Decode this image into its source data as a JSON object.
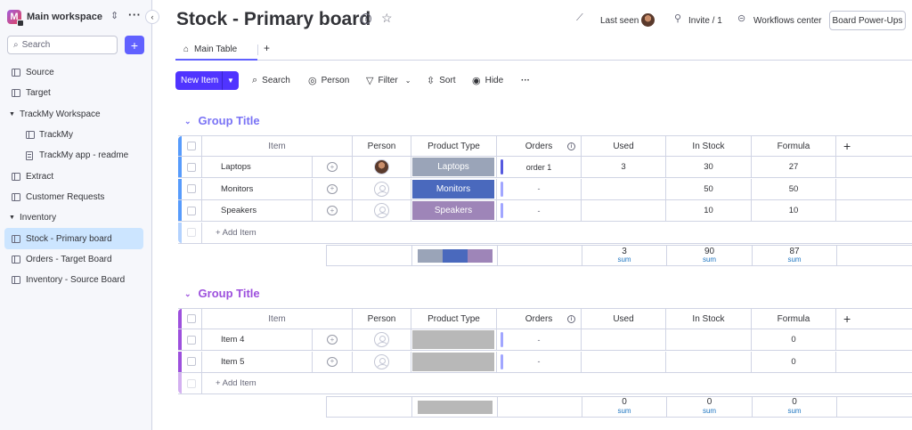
{
  "sidebar": {
    "workspace_name": "Main workspace",
    "workspace_initial": "M",
    "search_placeholder": "Search",
    "add_label": "+",
    "items": [
      {
        "label": "Source",
        "icon": "board-icon",
        "indent": 0
      },
      {
        "label": "Target",
        "icon": "board-icon",
        "indent": 0
      },
      {
        "label": "TrackMy Workspace",
        "icon": "caret-down-icon",
        "indent": 0,
        "folder": true
      },
      {
        "label": "TrackMy",
        "icon": "board-icon",
        "indent": 1
      },
      {
        "label": "TrackMy app - readme",
        "icon": "doc-icon",
        "indent": 1
      },
      {
        "label": "Extract",
        "icon": "board-icon",
        "indent": 0
      },
      {
        "label": "Customer Requests",
        "icon": "board-icon",
        "indent": 0
      },
      {
        "label": "Inventory",
        "icon": "caret-down-icon",
        "indent": 0,
        "folder": true
      },
      {
        "label": "Stock - Primary board",
        "icon": "board-icon",
        "indent": 0,
        "active": true
      },
      {
        "label": "Orders - Target Board",
        "icon": "board-icon",
        "indent": 0
      },
      {
        "label": "Inventory - Source Board",
        "icon": "board-icon",
        "indent": 0
      }
    ]
  },
  "header": {
    "title": "Stock - Primary board",
    "last_seen": "Last seen",
    "invite": "Invite / 1",
    "workflows": "Workflows center",
    "power_ups": "Board Power-Ups"
  },
  "tabs": {
    "main": "Main Table",
    "add": "+"
  },
  "toolbar": {
    "new_item": "New Item",
    "search": "Search",
    "person": "Person",
    "filter": "Filter",
    "sort": "Sort",
    "hide": "Hide",
    "more": "···"
  },
  "columns": {
    "item": "Item",
    "person": "Person",
    "product_type": "Product Type",
    "orders": "Orders",
    "used": "Used",
    "in_stock": "In Stock",
    "formula": "Formula",
    "add": "+"
  },
  "colors": {
    "group1": "#579bfc",
    "group1_title": "#7a73f5",
    "group2": "#9d50dd",
    "laptops": "#9aa4b8",
    "monitors": "#4a69bd",
    "speakers": "#9e85b8",
    "empty_status": "#b8b8b8",
    "primary": "#5034ff"
  },
  "groups": [
    {
      "title": "Group Title",
      "rows": [
        {
          "item": "Laptops",
          "person": "photo",
          "product_type": "Laptops",
          "status_color": "#9aa4b8",
          "orders": "order 1",
          "orders_bar": "dark",
          "used": "3",
          "in_stock": "30",
          "formula": "27"
        },
        {
          "item": "Monitors",
          "person": "empty",
          "product_type": "Monitors",
          "status_color": "#4a69bd",
          "orders": "-",
          "orders_bar": "light",
          "used": "",
          "in_stock": "50",
          "formula": "50"
        },
        {
          "item": "Speakers",
          "person": "empty",
          "product_type": "Speakers",
          "status_color": "#9e85b8",
          "orders": "-",
          "orders_bar": "light",
          "used": "",
          "in_stock": "10",
          "formula": "10"
        }
      ],
      "add_item": "+ Add Item",
      "summary": {
        "used": "3",
        "in_stock": "90",
        "formula": "87",
        "label": "sum"
      }
    },
    {
      "title": "Group Title",
      "rows": [
        {
          "item": "Item 4",
          "person": "empty",
          "product_type": "",
          "status_color": "#b8b8b8",
          "orders": "-",
          "orders_bar": "light",
          "used": "",
          "in_stock": "",
          "formula": "0"
        },
        {
          "item": "Item 5",
          "person": "empty",
          "product_type": "",
          "status_color": "#b8b8b8",
          "orders": "-",
          "orders_bar": "light",
          "used": "",
          "in_stock": "",
          "formula": "0"
        }
      ],
      "add_item": "+ Add Item",
      "summary": {
        "used": "0",
        "in_stock": "0",
        "formula": "0",
        "label": "sum"
      }
    }
  ]
}
